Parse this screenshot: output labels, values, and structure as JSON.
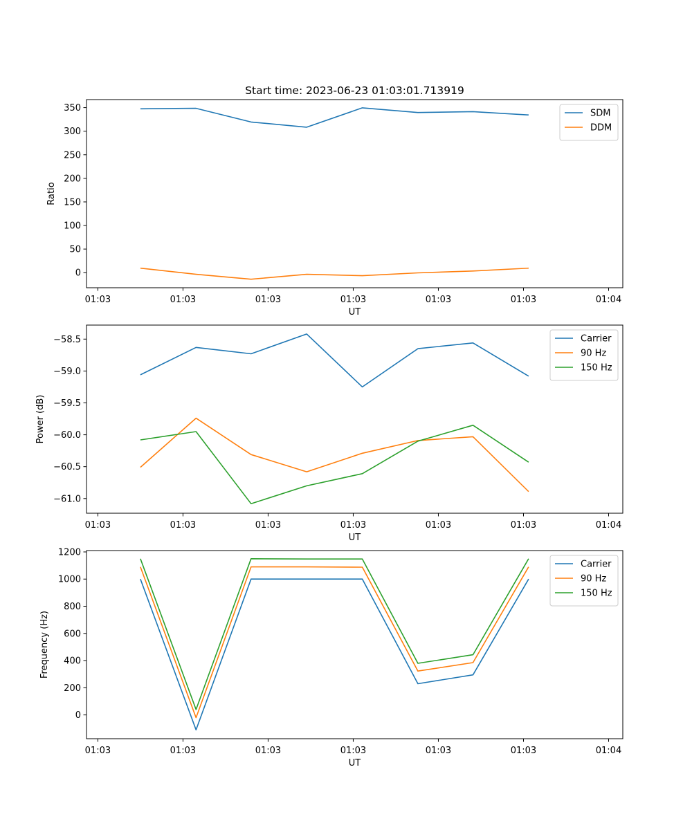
{
  "figure": {
    "title": "Start time: 2023-06-23 01:03:01.713919"
  },
  "chart_data": [
    {
      "type": "line",
      "title": "Start time: 2023-06-23 01:03:01.713919",
      "xlabel": "UT",
      "ylabel": "Ratio",
      "xlim": [
        0,
        9.45
      ],
      "ylim": [
        -32,
        367
      ],
      "x_ticks": [
        0.2,
        1.7,
        3.2,
        4.7,
        6.2,
        7.7,
        9.2
      ],
      "x_tick_labels": [
        "01:03",
        "01:03",
        "01:03",
        "01:03",
        "01:03",
        "01:03",
        "01:04"
      ],
      "y_ticks": [
        0,
        50,
        100,
        150,
        200,
        250,
        300,
        350
      ],
      "y_tick_labels": [
        "0",
        "50",
        "100",
        "150",
        "200",
        "250",
        "300",
        "350"
      ],
      "legend_position": "top-right",
      "x": [
        0.95,
        1.93,
        2.9,
        3.88,
        4.86,
        5.84,
        6.81,
        7.79
      ],
      "series": [
        {
          "name": "SDM",
          "color": "#1f77b4",
          "values": [
            347.5,
            348.5,
            319.5,
            308.5,
            349.5,
            339.5,
            341.5,
            334.5
          ]
        },
        {
          "name": "DDM",
          "color": "#ff7f0e",
          "values": [
            9.5,
            -3.5,
            -14,
            -3.5,
            -6.5,
            -0.5,
            3.5,
            9.5
          ]
        }
      ]
    },
    {
      "type": "line",
      "title": "",
      "xlabel": "UT",
      "ylabel": "Power (dB)",
      "xlim": [
        0,
        9.45
      ],
      "ylim": [
        -61.23,
        -58.28
      ],
      "x_ticks": [
        0.2,
        1.7,
        3.2,
        4.7,
        6.2,
        7.7,
        9.2
      ],
      "x_tick_labels": [
        "01:03",
        "01:03",
        "01:03",
        "01:03",
        "01:03",
        "01:03",
        "01:04"
      ],
      "y_ticks": [
        -58.5,
        -59.0,
        -59.5,
        -60.0,
        -60.5,
        -61.0
      ],
      "y_tick_labels": [
        "−58.5",
        "−59.0",
        "−59.5",
        "−60.0",
        "−60.5",
        "−61.0"
      ],
      "legend_position": "top-right",
      "x": [
        0.95,
        1.93,
        2.9,
        3.88,
        4.86,
        5.84,
        6.81,
        7.79
      ],
      "series": [
        {
          "name": "Carrier",
          "color": "#1f77b4",
          "values": [
            -59.06,
            -58.63,
            -58.73,
            -58.42,
            -59.25,
            -58.65,
            -58.56,
            -59.08
          ]
        },
        {
          "name": "90 Hz",
          "color": "#ff7f0e",
          "values": [
            -60.51,
            -59.74,
            -60.31,
            -60.58,
            -60.29,
            -60.09,
            -60.03,
            -60.89
          ]
        },
        {
          "name": "150 Hz",
          "color": "#2ca02c",
          "values": [
            -60.08,
            -59.95,
            -61.08,
            -60.8,
            -60.61,
            -60.1,
            -59.85,
            -60.43
          ]
        }
      ]
    },
    {
      "type": "line",
      "title": "",
      "xlabel": "UT",
      "ylabel": "Frequency (Hz)",
      "xlim": [
        0,
        9.45
      ],
      "ylim": [
        -175,
        1210
      ],
      "x_ticks": [
        0.2,
        1.7,
        3.2,
        4.7,
        6.2,
        7.7,
        9.2
      ],
      "x_tick_labels": [
        "01:03",
        "01:03",
        "01:03",
        "01:03",
        "01:03",
        "01:03",
        "01:04"
      ],
      "y_ticks": [
        0,
        200,
        400,
        600,
        800,
        1000,
        1200
      ],
      "y_tick_labels": [
        "0",
        "200",
        "400",
        "600",
        "800",
        "1000",
        "1200"
      ],
      "legend_position": "top-right",
      "x": [
        0.95,
        1.93,
        2.9,
        3.88,
        4.86,
        5.84,
        6.81,
        7.79
      ],
      "series": [
        {
          "name": "Carrier",
          "color": "#1f77b4",
          "values": [
            1000,
            -110,
            1000,
            1000,
            1000,
            230,
            295,
            1000
          ]
        },
        {
          "name": "90 Hz",
          "color": "#ff7f0e",
          "values": [
            1090,
            -20,
            1090,
            1090,
            1088,
            323,
            385,
            1090
          ]
        },
        {
          "name": "150 Hz",
          "color": "#2ca02c",
          "values": [
            1150,
            40,
            1150,
            1148,
            1148,
            380,
            443,
            1150
          ]
        }
      ]
    }
  ]
}
